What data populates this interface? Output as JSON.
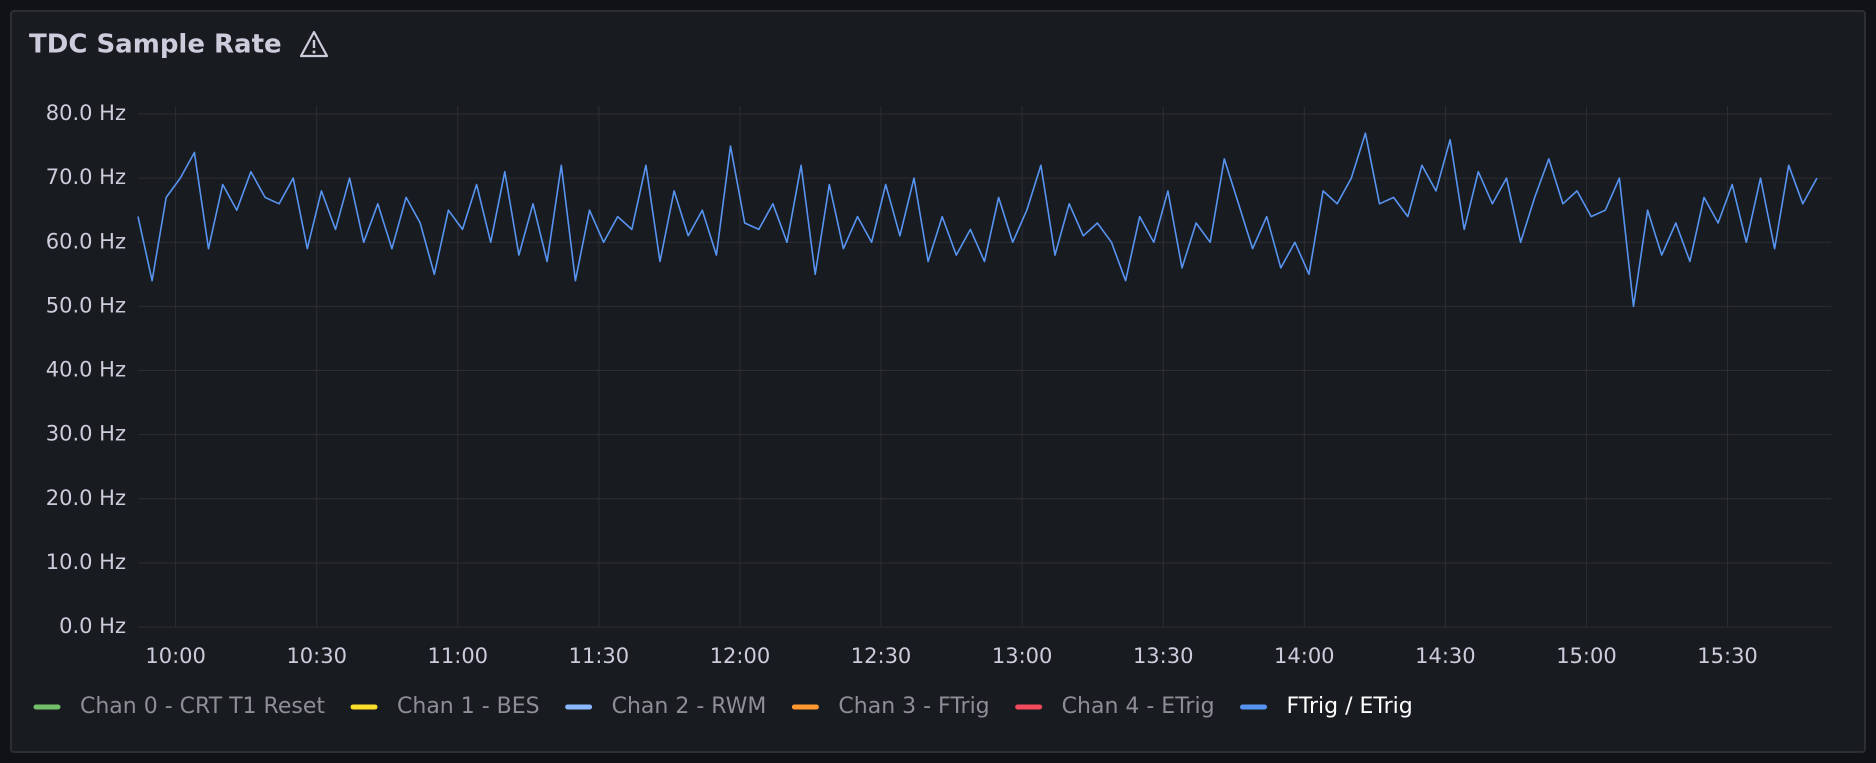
{
  "chart_data": {
    "type": "line",
    "title": "TDC Sample Rate",
    "x": [
      592,
      595,
      598,
      601,
      604,
      607,
      610,
      613,
      616,
      619,
      622,
      625,
      628,
      631,
      634,
      637,
      640,
      643,
      646,
      649,
      652,
      655,
      658,
      661,
      664,
      667,
      670,
      673,
      676,
      679,
      682,
      685,
      688,
      691,
      694,
      697,
      700,
      703,
      706,
      709,
      712,
      715,
      718,
      721,
      724,
      727,
      730,
      733,
      736,
      739,
      742,
      745,
      748,
      751,
      754,
      757,
      760,
      763,
      766,
      769,
      772,
      775,
      778,
      781,
      784,
      787,
      790,
      793,
      796,
      799,
      802,
      805,
      808,
      811,
      814,
      817,
      820,
      823,
      826,
      829,
      832,
      835,
      838,
      841,
      844,
      847,
      850,
      853,
      856,
      859,
      862,
      865,
      868,
      871,
      874,
      877,
      880,
      883,
      886,
      889,
      892,
      895,
      898,
      901,
      904,
      907,
      910,
      913,
      916,
      919,
      922,
      925,
      928,
      931,
      934,
      937,
      940,
      943,
      946,
      949
    ],
    "series": [
      {
        "name": "Chan 0 - CRT T1 Reset",
        "color": "#73bf69",
        "hidden": true
      },
      {
        "name": "Chan 1 - BES",
        "color": "#fade2a",
        "hidden": true
      },
      {
        "name": "Chan 2 - RWM",
        "color": "#8ab8ff",
        "hidden": true
      },
      {
        "name": "Chan 3 - FTrig",
        "color": "#ff9830",
        "hidden": true
      },
      {
        "name": "Chan 4 - ETrig",
        "color": "#f2495c",
        "hidden": true
      },
      {
        "name": "FTrig / ETrig",
        "color": "#5794f2",
        "hidden": false,
        "values": [
          64,
          54,
          67,
          70,
          74,
          59,
          69,
          65,
          71,
          67,
          66,
          70,
          59,
          68,
          62,
          70,
          60,
          66,
          59,
          67,
          63,
          55,
          65,
          62,
          69,
          60,
          71,
          58,
          66,
          57,
          72,
          54,
          65,
          60,
          64,
          62,
          72,
          57,
          68,
          61,
          65,
          58,
          75,
          63,
          62,
          66,
          60,
          72,
          55,
          69,
          59,
          64,
          60,
          69,
          61,
          70,
          57,
          64,
          58,
          62,
          57,
          67,
          60,
          65,
          72,
          58,
          66,
          61,
          63,
          60,
          54,
          64,
          60,
          68,
          56,
          63,
          60,
          73,
          66,
          59,
          64,
          56,
          60,
          55,
          68,
          66,
          70,
          77,
          66,
          67,
          64,
          72,
          68,
          76,
          62,
          71,
          66,
          70,
          60,
          67,
          73,
          66,
          68,
          64,
          65,
          70,
          50,
          65,
          58,
          63,
          57,
          67,
          63,
          69,
          60,
          70,
          59,
          72,
          66,
          70
        ]
      }
    ],
    "xlim": [
      592,
      952
    ],
    "ylim": [
      0,
      80
    ],
    "xticks": [
      {
        "value": 600,
        "label": "10:00"
      },
      {
        "value": 630,
        "label": "10:30"
      },
      {
        "value": 660,
        "label": "11:00"
      },
      {
        "value": 690,
        "label": "11:30"
      },
      {
        "value": 720,
        "label": "12:00"
      },
      {
        "value": 750,
        "label": "12:30"
      },
      {
        "value": 780,
        "label": "13:00"
      },
      {
        "value": 810,
        "label": "13:30"
      },
      {
        "value": 840,
        "label": "14:00"
      },
      {
        "value": 870,
        "label": "14:30"
      },
      {
        "value": 900,
        "label": "15:00"
      },
      {
        "value": 930,
        "label": "15:30"
      }
    ],
    "yticks": [
      {
        "value": 0,
        "label": "0.0 Hz"
      },
      {
        "value": 10,
        "label": "10.0 Hz"
      },
      {
        "value": 20,
        "label": "20.0 Hz"
      },
      {
        "value": 30,
        "label": "30.0 Hz"
      },
      {
        "value": 40,
        "label": "40.0 Hz"
      },
      {
        "value": 50,
        "label": "50.0 Hz"
      },
      {
        "value": 60,
        "label": "60.0 Hz"
      },
      {
        "value": 70,
        "label": "70.0 Hz"
      },
      {
        "value": 80,
        "label": "80.0 Hz"
      }
    ],
    "grid": true
  }
}
